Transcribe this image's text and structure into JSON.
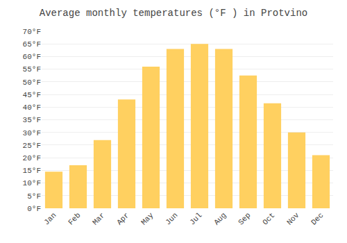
{
  "chart_data": {
    "type": "bar",
    "title": "Average monthly temperatures (°F ) in Protvino",
    "categories": [
      "Jan",
      "Feb",
      "Mar",
      "Apr",
      "May",
      "Jun",
      "Jul",
      "Aug",
      "Sep",
      "Oct",
      "Nov",
      "Dec"
    ],
    "values": [
      14.5,
      17.0,
      27.0,
      43.0,
      56.0,
      63.0,
      65.0,
      63.0,
      52.5,
      41.5,
      30.0,
      21.0
    ],
    "color": "#FFD060",
    "ylim": [
      0,
      70
    ],
    "yticks": [
      {
        "value": 0,
        "label": "0°F"
      },
      {
        "value": 5,
        "label": "5°F"
      },
      {
        "value": 10,
        "label": "10°F"
      },
      {
        "value": 15,
        "label": "15°F"
      },
      {
        "value": 20,
        "label": "20°F"
      },
      {
        "value": 25,
        "label": "25°F"
      },
      {
        "value": 30,
        "label": "30°F"
      },
      {
        "value": 35,
        "label": "35°F"
      },
      {
        "value": 40,
        "label": "40°F"
      },
      {
        "value": 45,
        "label": "45°F"
      },
      {
        "value": 50,
        "label": "50°F"
      },
      {
        "value": 55,
        "label": "55°F"
      },
      {
        "value": 60,
        "label": "60°F"
      },
      {
        "value": 65,
        "label": "65°F"
      },
      {
        "value": 70,
        "label": "70°F"
      }
    ],
    "grid": true
  }
}
